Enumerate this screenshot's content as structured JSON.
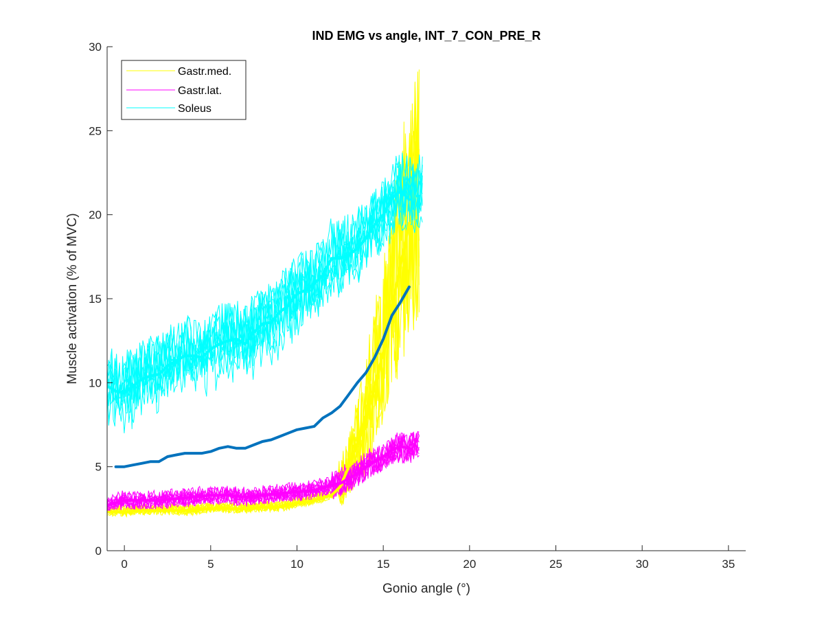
{
  "chart_data": {
    "type": "line",
    "title": "IND EMG vs angle, INT_7_CON_PRE_R",
    "xlabel": "Gonio angle (°)",
    "ylabel": "Muscle activation (% of MVC)",
    "xlim": [
      -1,
      36
    ],
    "ylim": [
      0,
      30
    ],
    "xticks": [
      "0",
      "5",
      "10",
      "15",
      "20",
      "25",
      "30",
      "35"
    ],
    "yticks": [
      "0",
      "5",
      "10",
      "15",
      "20",
      "25",
      "30"
    ],
    "legend_position": "top-left",
    "legend": [
      {
        "name": "Gastr.med.",
        "color": "#FFFF00"
      },
      {
        "name": "Gastr.lat.",
        "color": "#FF00FF"
      },
      {
        "name": "Soleus",
        "color": "#00FFFF"
      }
    ],
    "mean_lines": [
      {
        "muscle": "Soleus",
        "color": "#00FFFF",
        "x": [
          -1,
          -0.5,
          0,
          0.5,
          1,
          1.5,
          2,
          2.5,
          3,
          3.5,
          4,
          4.5,
          5,
          5.5,
          6,
          6.5,
          7,
          7.5,
          8,
          8.5,
          9,
          9.5,
          10,
          10.5,
          11,
          11.5,
          12,
          12.5,
          13,
          13.5,
          14,
          14.5,
          15,
          15.5,
          16,
          16.5
        ],
        "y": [
          9.8,
          9.5,
          9.4,
          9.8,
          10.2,
          10.4,
          10.5,
          11.0,
          11.3,
          11.6,
          11.6,
          11.5,
          12.0,
          12.3,
          12.5,
          12.6,
          12.3,
          13.0,
          13.5,
          13.6,
          14.2,
          14.6,
          15.3,
          15.5,
          15.9,
          16.4,
          17.4,
          17.4,
          17.6,
          18.0,
          18.6,
          19.4,
          20.0,
          21.0,
          21.4,
          20.9
        ]
      },
      {
        "muscle": "Average",
        "color": "#0072BD",
        "x": [
          -0.5,
          0,
          0.5,
          1,
          1.5,
          2,
          2.5,
          3,
          3.5,
          4,
          4.5,
          5,
          5.5,
          6,
          6.5,
          7,
          7.5,
          8,
          8.5,
          9,
          9.5,
          10,
          10.5,
          11,
          11.5,
          12,
          12.5,
          13,
          13.5,
          14,
          14.5,
          15,
          15.5,
          16,
          16.5
        ],
        "y": [
          5.0,
          5.0,
          5.1,
          5.2,
          5.3,
          5.3,
          5.6,
          5.7,
          5.8,
          5.8,
          5.8,
          5.9,
          6.1,
          6.2,
          6.1,
          6.1,
          6.3,
          6.5,
          6.6,
          6.8,
          7.0,
          7.2,
          7.3,
          7.4,
          7.9,
          8.2,
          8.6,
          9.3,
          10.0,
          10.6,
          11.5,
          12.6,
          14.0,
          14.8,
          15.7
        ]
      },
      {
        "muscle": "Gastr.med.",
        "color": "#FFFF00",
        "x": [
          -1,
          0,
          1,
          2,
          3,
          4,
          5,
          6,
          7,
          8,
          9,
          10,
          11,
          12,
          12.5,
          13,
          13.5,
          14,
          14.5,
          15,
          15.5,
          16,
          16.5
        ],
        "y": [
          2.3,
          2.3,
          2.4,
          2.4,
          2.4,
          2.4,
          2.5,
          2.5,
          2.5,
          2.6,
          2.6,
          2.8,
          3.0,
          3.3,
          3.8,
          5.0,
          6.4,
          7.8,
          9.8,
          11.8,
          14.5,
          17.0,
          19.5
        ]
      },
      {
        "muscle": "Gastr.lat.",
        "color": "#FF00FF",
        "x": [
          -1,
          0,
          1,
          2,
          3,
          4,
          5,
          6,
          7,
          8,
          9,
          10,
          11,
          12,
          12.5,
          13,
          13.5,
          14,
          14.5,
          15,
          15.5,
          16,
          16.5
        ],
        "y": [
          2.7,
          3.0,
          3.0,
          3.0,
          3.1,
          3.2,
          3.3,
          3.3,
          3.2,
          3.3,
          3.4,
          3.5,
          3.6,
          3.9,
          4.0,
          4.3,
          4.6,
          5.0,
          5.3,
          5.6,
          6.0,
          6.2,
          6.1
        ]
      }
    ]
  }
}
